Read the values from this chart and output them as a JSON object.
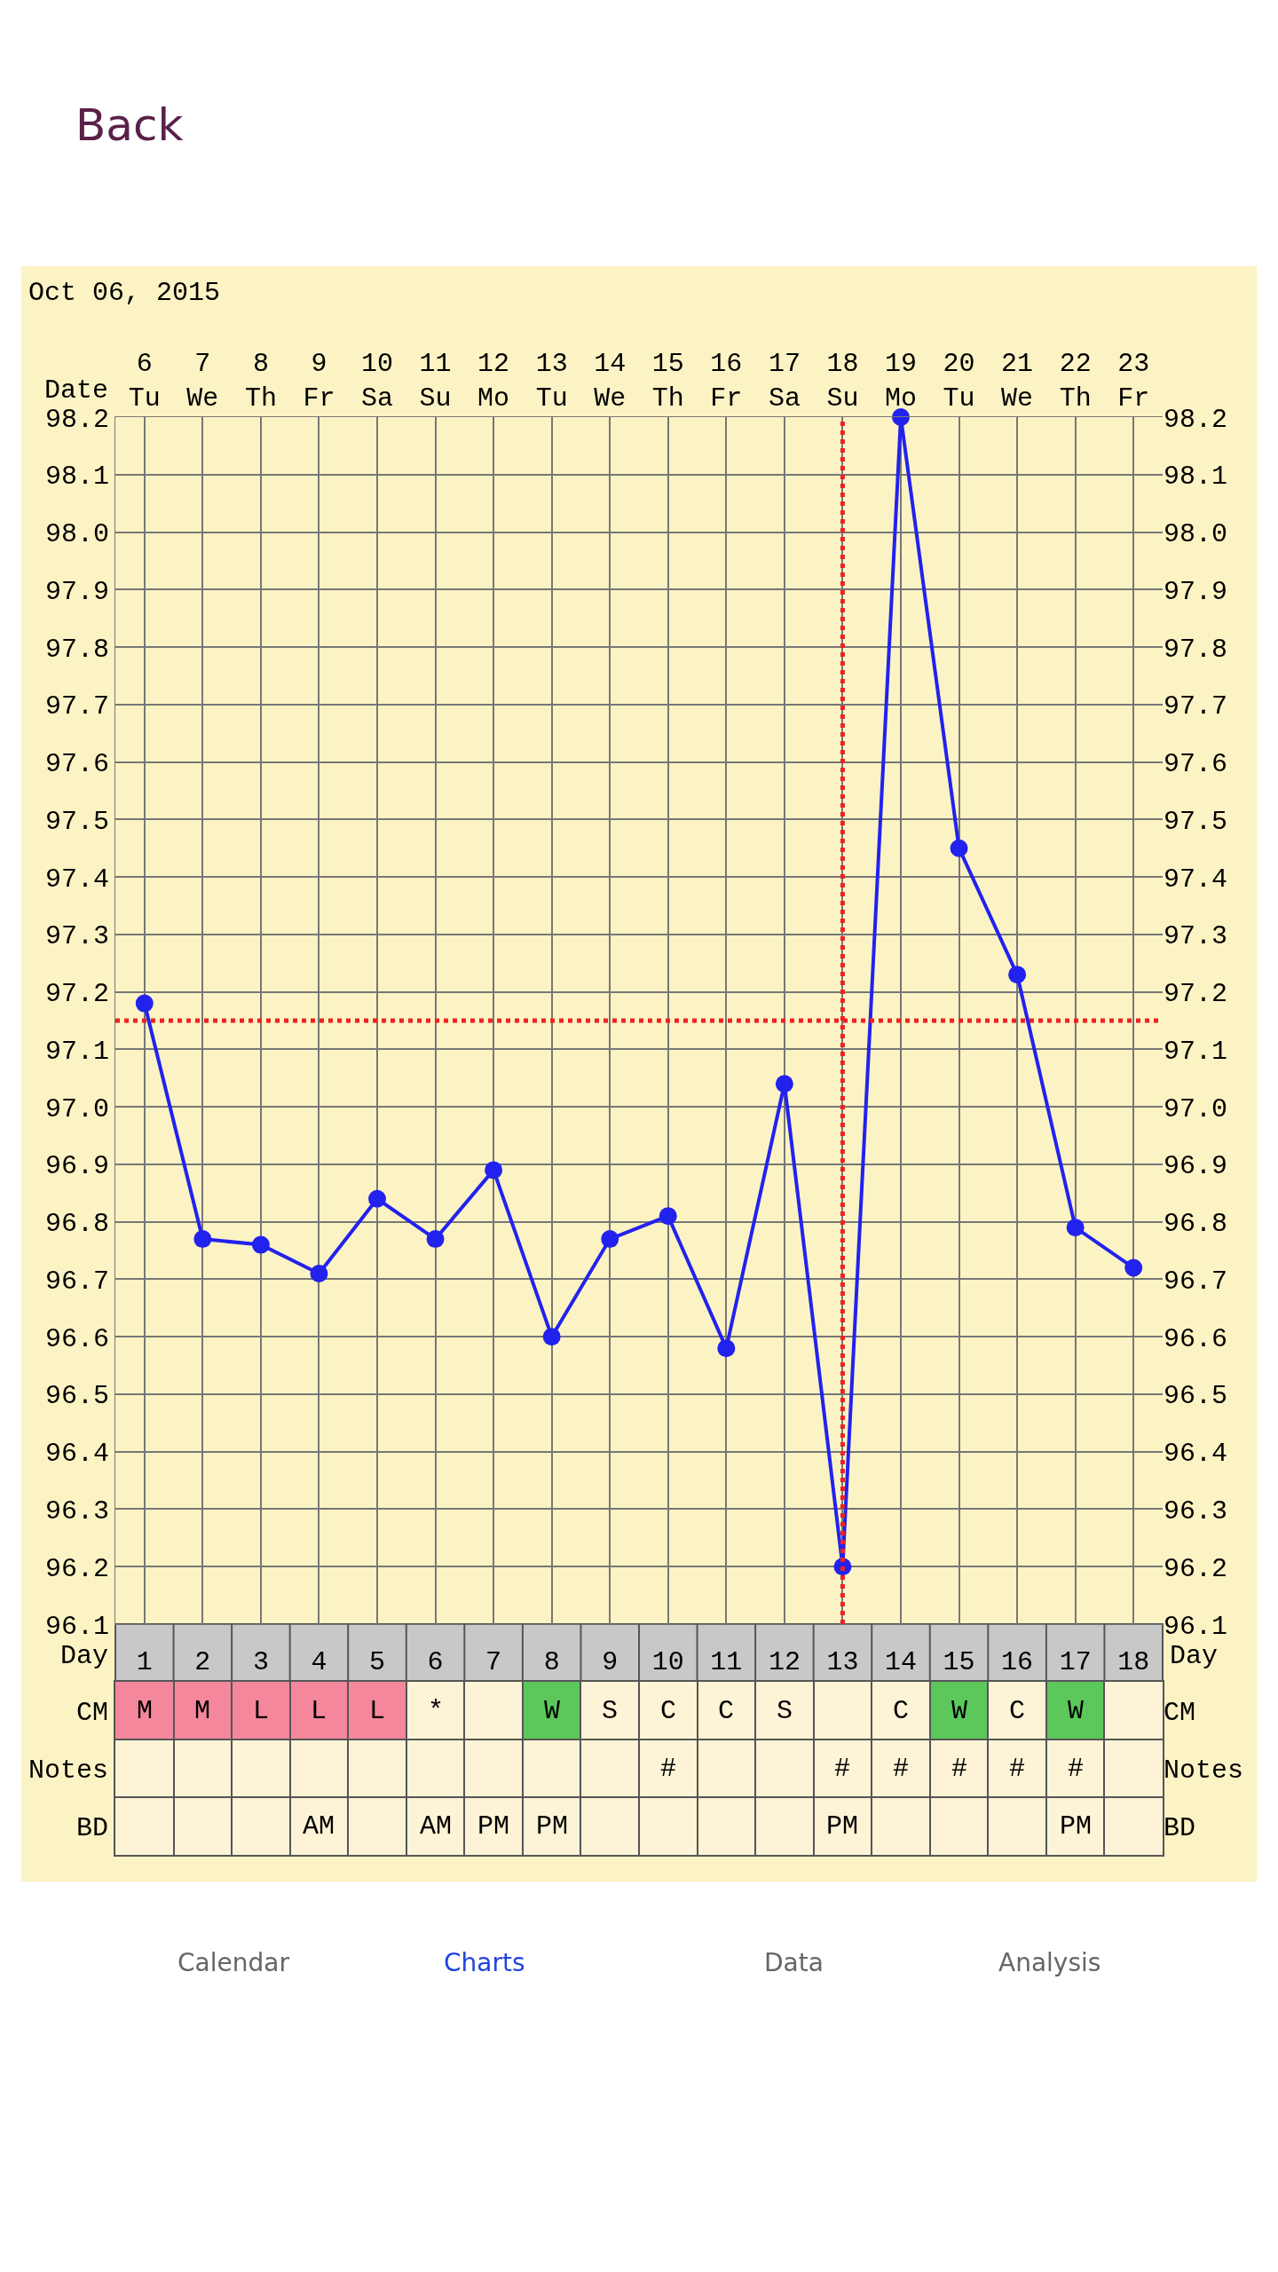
{
  "chart_data": [
    {
      "type": "line",
      "subtitle": "Oct 06, 2015",
      "xlabel": "Date",
      "categories": [
        "6\nTu",
        "7\nWe",
        "8\nTh",
        "9\nFr",
        "10\nSa",
        "11\nSu",
        "12\nMo",
        "13\nTu",
        "14\nWe",
        "15\nTh",
        "16\nFr",
        "17\nSa",
        "18\nSu",
        "19\nMo",
        "20\nTu",
        "21\nWe",
        "22\nTh",
        "23\nFr"
      ],
      "series": [
        {
          "color": "#2222ee",
          "values": [
            97.18,
            96.77,
            96.76,
            96.71,
            96.84,
            96.77,
            96.89,
            96.6,
            96.77,
            96.81,
            96.58,
            97.04,
            96.2,
            98.2,
            97.45,
            97.23,
            96.79,
            96.72
          ]
        }
      ],
      "ylim": [
        96.1,
        98.2
      ],
      "yticks": [
        96.1,
        96.2,
        96.3,
        96.4,
        96.5,
        96.6,
        96.7,
        96.8,
        96.9,
        {
          "value": 97,
          "label": "97.0"
        },
        97.1,
        97.2,
        97.3,
        97.4,
        97.5,
        97.6,
        97.7,
        97.8,
        97.9,
        {
          "value": 98,
          "label": "98.0"
        },
        98.1,
        98.2
      ],
      "y2lim": [
        96.1,
        98.2
      ],
      "y2ticks": [
        96.1,
        96.2,
        96.3,
        96.4,
        96.5,
        96.6,
        96.7,
        96.8,
        96.9,
        {
          "value": 97,
          "label": "97.0"
        },
        97.1,
        97.2,
        97.3,
        97.4,
        97.5,
        97.6,
        97.7,
        97.8,
        97.9,
        {
          "value": 98,
          "label": "98.0"
        },
        98.1,
        98.2
      ],
      "x2label": "Day",
      "x2lim": [
        0.5,
        18.5
      ],
      "x2ticks": [
        1,
        2,
        3,
        4,
        5,
        6,
        7,
        8,
        9,
        10,
        11,
        12,
        13,
        14,
        15,
        16,
        17,
        18
      ],
      "grid": true,
      "marker": "circle",
      "line_style": "solid",
      "ref_lines": [
        {
          "axis": "y",
          "value": 97.15,
          "color": "#ee2222",
          "line_style": "dotted"
        },
        {
          "axis": "x",
          "value": "18\nSu",
          "color": "#ee2222",
          "line_style": "dotted"
        }
      ],
      "annotations": [
        "Back",
        "Calendar",
        "Charts",
        "Data",
        "Analysis"
      ]
    },
    {
      "type": "other",
      "y_categories": [
        "CM",
        "Notes",
        "BD"
      ],
      "y2_categories": [
        "CM",
        "Notes",
        "BD"
      ],
      "cell_labels": [
        [
          "M",
          "M",
          "L",
          "L",
          "L",
          "*",
          null,
          "W",
          "S",
          "C",
          "C",
          "S",
          null,
          "C",
          "W",
          "C",
          "W",
          null
        ],
        [
          null,
          null,
          null,
          null,
          null,
          null,
          null,
          null,
          null,
          "#",
          null,
          null,
          "#",
          "#",
          "#",
          "#",
          "#",
          null
        ],
        [
          null,
          null,
          null,
          "AM",
          null,
          "AM",
          "PM",
          "PM",
          null,
          null,
          null,
          null,
          "PM",
          null,
          null,
          null,
          "PM",
          null
        ]
      ],
      "colors": [
        [
          "#f4879c",
          "#f4879c",
          "#f4879c",
          "#f4879c",
          "#f4879c",
          null,
          null,
          "#5cc85c",
          null,
          null,
          null,
          null,
          null,
          null,
          "#5cc85c",
          null,
          "#5cc85c",
          null
        ],
        [
          null,
          null,
          null,
          null,
          null,
          null,
          null,
          null,
          null,
          null,
          null,
          null,
          null,
          null,
          null,
          null,
          null,
          null
        ],
        [
          null,
          null,
          null,
          null,
          null,
          null,
          null,
          null,
          null,
          null,
          null,
          null,
          null,
          null,
          null,
          null,
          null,
          null
        ]
      ]
    }
  ]
}
